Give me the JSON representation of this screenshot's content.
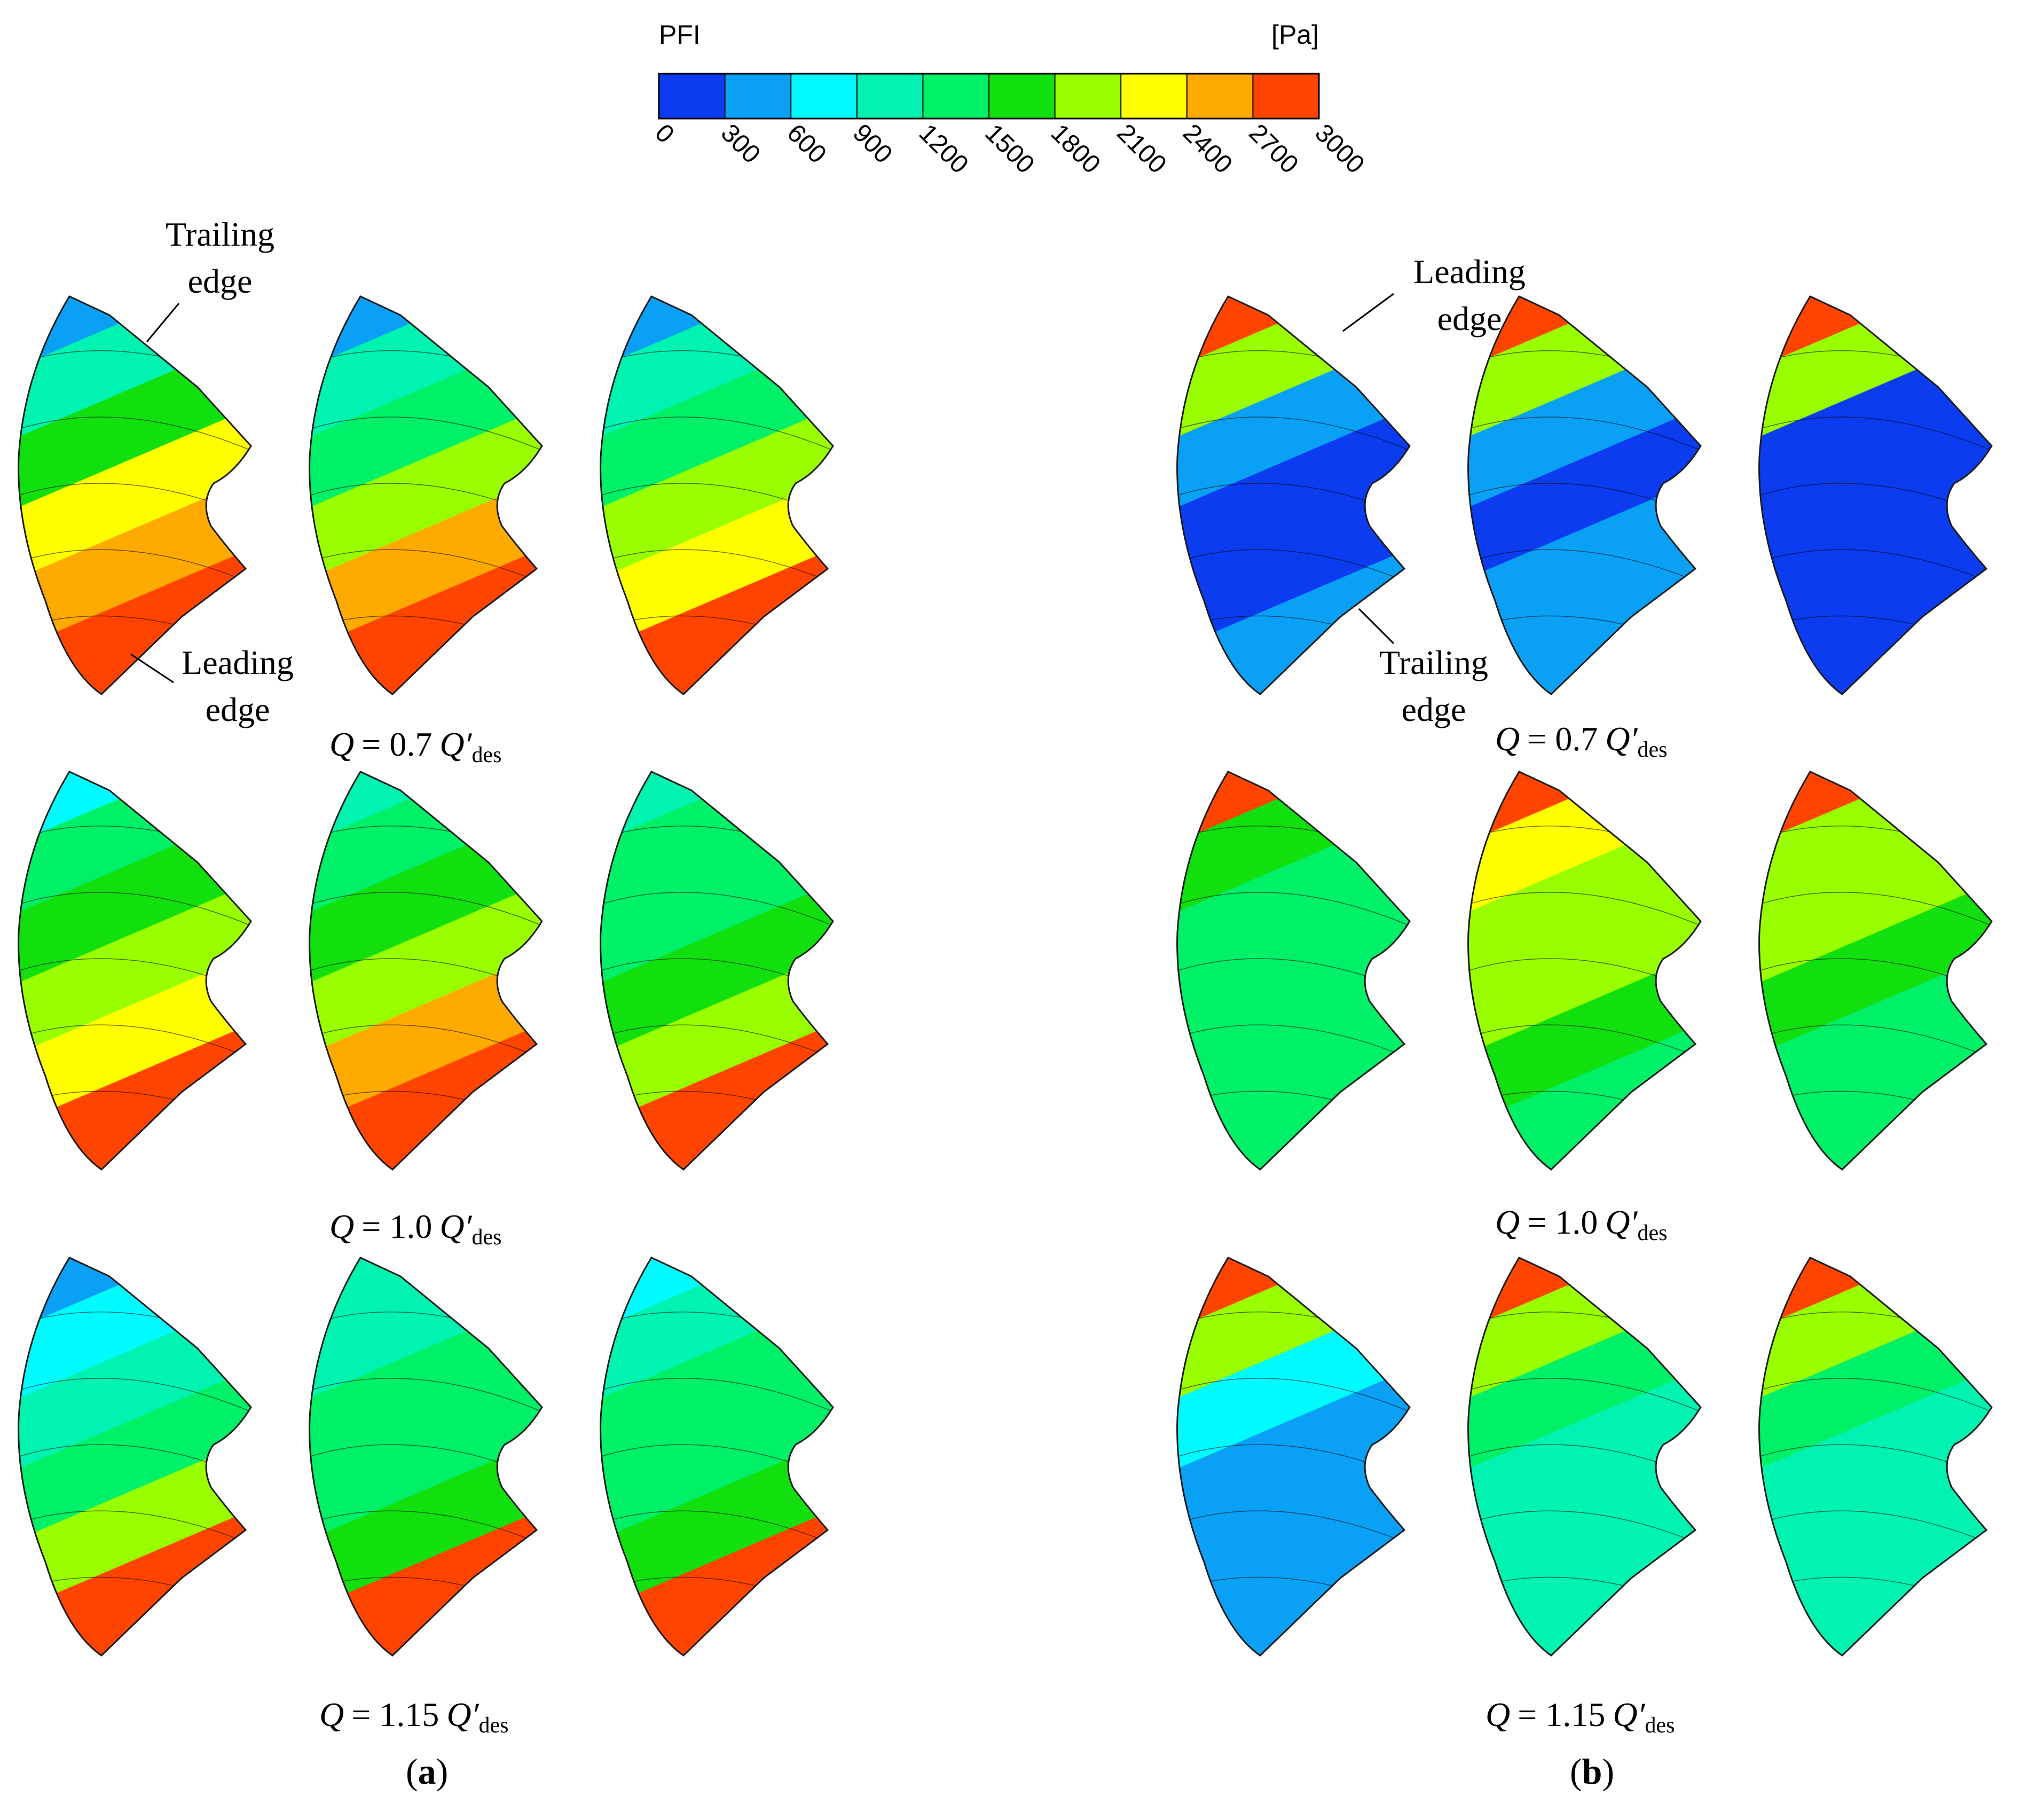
{
  "colorbar": {
    "title": "PFI",
    "unit": "[Pa]",
    "ticks": [
      "0",
      "300",
      "600",
      "900",
      "1200",
      "1500",
      "1800",
      "2100",
      "2400",
      "2700",
      "3000"
    ],
    "colors": [
      "#0b3cf0",
      "#09a0f5",
      "#00fbff",
      "#00f3b0",
      "#00f068",
      "#11df0e",
      "#99ff00",
      "#ffff00",
      "#ffaa00",
      "#ff4400"
    ]
  },
  "panel_a": {
    "label_open": "(",
    "label_letter": "a",
    "label_close": ")",
    "trailing_edge": [
      "Trailing",
      "edge"
    ],
    "leading_edge": [
      "Leading",
      "edge"
    ],
    "rows": [
      {
        "q_prefix": "Q",
        "q_equals": "= 0.7",
        "q_symbol": "Q′",
        "q_sub": "des"
      },
      {
        "q_prefix": "Q",
        "q_equals": "= 1.0",
        "q_symbol": "Q′",
        "q_sub": "des"
      },
      {
        "q_prefix": "Q",
        "q_equals": "= 1.15",
        "q_symbol": "Q′",
        "q_sub": "des"
      }
    ]
  },
  "panel_b": {
    "label_open": "(",
    "label_letter": "b",
    "label_close": ")",
    "trailing_edge": [
      "Trailing",
      "edge"
    ],
    "leading_edge": [
      "Leading",
      "edge"
    ],
    "rows": [
      {
        "q_prefix": "Q",
        "q_equals": "= 0.7",
        "q_symbol": "Q′",
        "q_sub": "des"
      },
      {
        "q_prefix": "Q",
        "q_equals": "= 1.0",
        "q_symbol": "Q′",
        "q_sub": "des"
      },
      {
        "q_prefix": "Q",
        "q_equals": "= 1.15",
        "q_symbol": "Q′",
        "q_sub": "des"
      }
    ]
  },
  "blade_levels": {
    "a": [
      [
        [
          600,
          1200,
          1800,
          2400,
          2700,
          3000
        ],
        [
          600,
          1200,
          1500,
          2100,
          2700,
          3000
        ],
        [
          600,
          1200,
          1500,
          2100,
          2400,
          3000
        ]
      ],
      [
        [
          900,
          1500,
          1800,
          2100,
          2400,
          3000
        ],
        [
          1200,
          1500,
          1800,
          2100,
          2700,
          3000
        ],
        [
          1200,
          1500,
          1500,
          1800,
          2100,
          3000
        ]
      ],
      [
        [
          600,
          900,
          1200,
          1500,
          2100,
          3000
        ],
        [
          1200,
          1200,
          1500,
          1500,
          1800,
          3000
        ],
        [
          900,
          1200,
          1500,
          1500,
          1800,
          3000
        ]
      ]
    ],
    "b": [
      [
        [
          3000,
          2100,
          600,
          300,
          300,
          600
        ],
        [
          3000,
          2100,
          600,
          300,
          600,
          600
        ],
        [
          3000,
          2100,
          300,
          300,
          300,
          300
        ]
      ],
      [
        [
          3000,
          1800,
          1500,
          1500,
          1500,
          1500
        ],
        [
          3000,
          2400,
          2100,
          2100,
          1800,
          1500
        ],
        [
          3000,
          2100,
          2100,
          1800,
          1500,
          1500
        ]
      ],
      [
        [
          3000,
          2100,
          900,
          600,
          600,
          600
        ],
        [
          3000,
          2100,
          1500,
          1200,
          1200,
          1200
        ],
        [
          3000,
          2100,
          1500,
          1200,
          1200,
          1200
        ]
      ]
    ]
  }
}
